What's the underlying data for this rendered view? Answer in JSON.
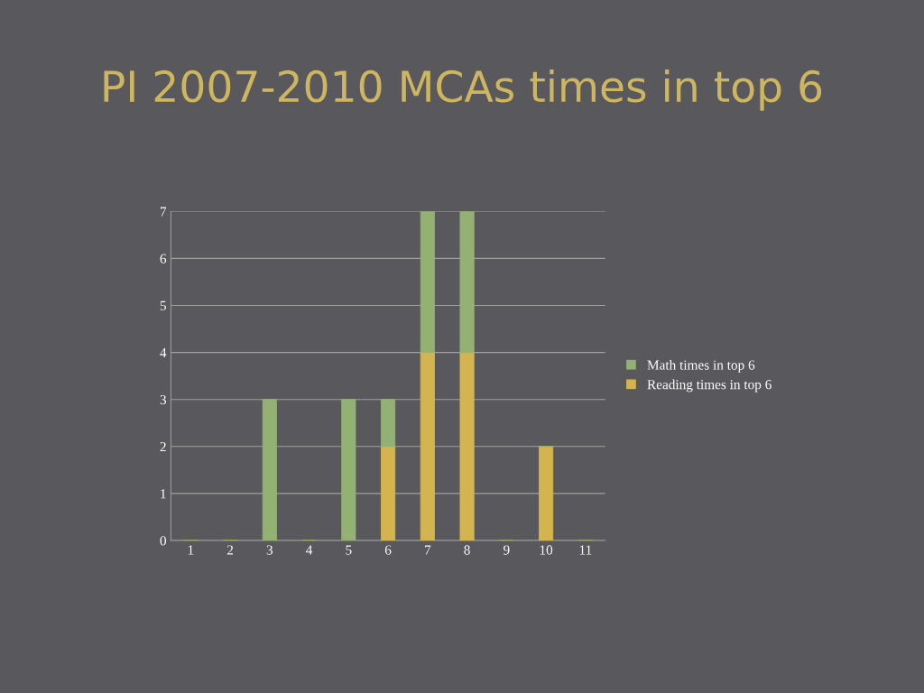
{
  "chart_data": {
    "type": "bar",
    "title": "PI 2007-2010 MCAs times in top 6",
    "categories": [
      "1",
      "2",
      "3",
      "4",
      "5",
      "6",
      "7",
      "8",
      "9",
      "10",
      "11"
    ],
    "stacked": true,
    "series": [
      {
        "name": "Reading times in top 6",
        "color": "#d4b44e",
        "values": [
          0,
          0,
          0,
          0,
          0,
          2,
          4,
          4,
          0,
          2,
          0
        ]
      },
      {
        "name": "Math times in top 6",
        "color": "#93b173",
        "values": [
          0,
          0,
          3,
          0,
          3,
          1,
          3,
          3,
          0,
          0,
          0
        ]
      }
    ],
    "ylim": [
      0,
      7
    ],
    "yticks": [
      0,
      1,
      2,
      3,
      4,
      5,
      6,
      7
    ],
    "grid": "y",
    "legend": "right"
  }
}
